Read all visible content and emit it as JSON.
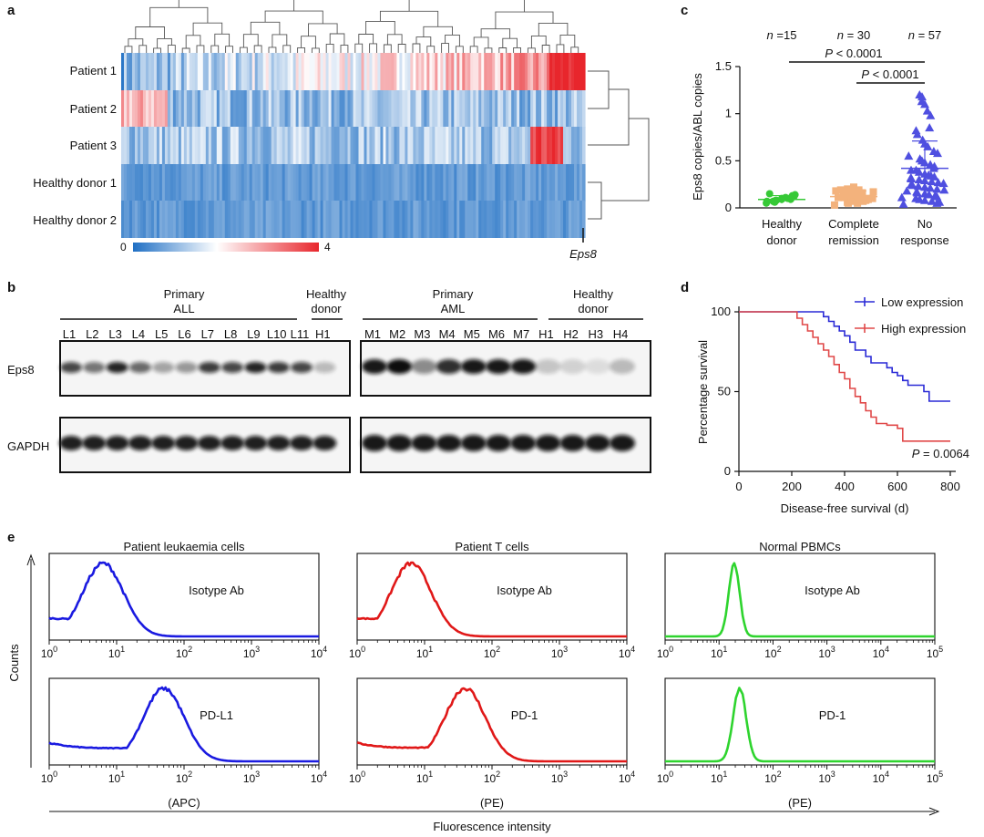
{
  "panels": {
    "a": "a",
    "b": "b",
    "c": "c",
    "d": "d",
    "e": "e"
  },
  "heatmap": {
    "rows": [
      "Patient 1",
      "Patient 2",
      "Patient 3",
      "Healthy donor 1",
      "Healthy donor 2"
    ],
    "scale_min": "0",
    "scale_max": "4",
    "gene_label": "Eps8"
  },
  "blot": {
    "group_labels": [
      "Primary",
      "ALL",
      "Healthy",
      "donor",
      "Primary",
      "AML",
      "Healthy",
      "donor"
    ],
    "left_lanes": [
      "L1",
      "L2",
      "L3",
      "L4",
      "L5",
      "L6",
      "L7",
      "L8",
      "L9",
      "L10",
      "L11",
      "H1"
    ],
    "right_lanes": [
      "M1",
      "M2",
      "M3",
      "M4",
      "M5",
      "M6",
      "M7",
      "H1",
      "H2",
      "H3",
      "H4"
    ],
    "left_eps8_intensity": [
      0.75,
      0.55,
      0.9,
      0.6,
      0.35,
      0.4,
      0.8,
      0.75,
      0.9,
      0.8,
      0.75,
      0.25
    ],
    "right_eps8_intensity": [
      0.95,
      1.0,
      0.45,
      0.85,
      0.95,
      0.95,
      0.95,
      0.2,
      0.15,
      0.1,
      0.25
    ],
    "row_labels": [
      "Eps8",
      "GAPDH"
    ]
  },
  "chart_data": [
    {
      "panel": "c",
      "type": "scatter",
      "categories": [
        "Healthy donor",
        "Complete remission",
        "No response"
      ],
      "category_lines": [
        [
          "Healthy",
          "donor"
        ],
        [
          "Complete",
          "remission"
        ],
        [
          "No",
          "response"
        ]
      ],
      "n_labels": [
        "n =15",
        "n = 30",
        "n = 57"
      ],
      "pvalues": [
        "P < 0.0001",
        "P < 0.0001"
      ],
      "ylabel": "Eps8 copies/ABL copies",
      "ylim": [
        0,
        1.5
      ],
      "yticks": [
        "0",
        "0.5",
        "1",
        "1.5"
      ],
      "colors": [
        "#36c936",
        "#f3b27c",
        "#4f4fe0"
      ],
      "means": [
        0.09,
        0.12,
        0.42
      ],
      "sd": [
        0.04,
        0.06,
        0.29
      ],
      "series": [
        {
          "name": "Healthy donor",
          "marker": "circle",
          "values": [
            0.05,
            0.07,
            0.08,
            0.09,
            0.1,
            0.12,
            0.14,
            0.15,
            0.06,
            0.08,
            0.1,
            0.11,
            0.13,
            0.09,
            0.07
          ]
        },
        {
          "name": "Complete remission",
          "marker": "square",
          "values": [
            0.03,
            0.05,
            0.06,
            0.07,
            0.08,
            0.09,
            0.1,
            0.11,
            0.12,
            0.13,
            0.14,
            0.15,
            0.16,
            0.17,
            0.18,
            0.19,
            0.2,
            0.22,
            0.05,
            0.07,
            0.09,
            0.11,
            0.13,
            0.15,
            0.17,
            0.19,
            0.08,
            0.1,
            0.12,
            0.14
          ]
        },
        {
          "name": "No response",
          "marker": "triangle",
          "values": [
            1.2,
            1.18,
            1.13,
            1.1,
            1.03,
            0.98,
            0.85,
            0.82,
            0.78,
            0.72,
            0.68,
            0.65,
            0.6,
            0.58,
            0.55,
            0.52,
            0.5,
            0.48,
            0.46,
            0.44,
            0.42,
            0.4,
            0.4,
            0.38,
            0.36,
            0.35,
            0.34,
            0.33,
            0.32,
            0.31,
            0.3,
            0.29,
            0.28,
            0.27,
            0.26,
            0.25,
            0.24,
            0.23,
            0.22,
            0.21,
            0.2,
            0.19,
            0.18,
            0.17,
            0.16,
            0.15,
            0.14,
            0.13,
            0.12,
            0.11,
            0.1,
            0.09,
            0.08,
            0.07,
            0.06,
            0.05,
            0.04
          ]
        }
      ]
    },
    {
      "panel": "d",
      "type": "line",
      "xlabel": "Disease-free survival (d)",
      "ylabel": "Percentage survival",
      "xlim": [
        0,
        800
      ],
      "ylim": [
        0,
        100
      ],
      "xticks": [
        "0",
        "200",
        "400",
        "600",
        "800"
      ],
      "yticks": [
        "0",
        "50",
        "100"
      ],
      "annotation": "P = 0.0064",
      "series": [
        {
          "name": "Low expression",
          "color": "#2a2ad6",
          "x": [
            0,
            300,
            320,
            340,
            360,
            380,
            400,
            420,
            440,
            480,
            500,
            560,
            580,
            600,
            620,
            640,
            700,
            720,
            800
          ],
          "y": [
            100,
            100,
            97,
            94,
            91,
            88,
            85,
            81,
            76,
            72,
            68,
            65,
            62,
            60,
            57,
            54,
            50,
            44,
            44
          ]
        },
        {
          "name": "High expression",
          "color": "#e04848",
          "x": [
            0,
            200,
            220,
            240,
            260,
            280,
            300,
            320,
            340,
            360,
            380,
            400,
            420,
            440,
            460,
            480,
            500,
            520,
            560,
            600,
            620,
            800
          ],
          "y": [
            100,
            100,
            96,
            92,
            88,
            84,
            80,
            76,
            72,
            67,
            62,
            58,
            52,
            47,
            43,
            38,
            34,
            30,
            29,
            27,
            19,
            19
          ]
        }
      ]
    },
    {
      "panel": "e",
      "type": "area",
      "x_axis_label": "Fluorescence intensity",
      "y_axis_label": "Counts",
      "column_titles": [
        "Patient leukaemia cells",
        "Patient T cells",
        "Normal PBMCs"
      ],
      "row_labels": [
        [
          "Isotype Ab",
          "Isotype Ab",
          "Isotype Ab"
        ],
        [
          "PD-L1",
          "PD-1",
          "PD-1"
        ]
      ],
      "channel_labels": [
        "(APC)",
        "(PE)",
        "(PE)"
      ],
      "colors": [
        "#1a1ae0",
        "#e01818",
        "#2ed42e"
      ],
      "max_decades": [
        4,
        4,
        5
      ],
      "peak_log10": [
        [
          0.8,
          0.8,
          1.28
        ],
        [
          1.7,
          1.6,
          1.38
        ]
      ],
      "peak_width": [
        [
          0.3,
          0.3,
          0.1
        ],
        [
          0.3,
          0.3,
          0.12
        ]
      ],
      "left_tail": [
        [
          true,
          true,
          false
        ],
        [
          true,
          true,
          false
        ]
      ]
    }
  ]
}
